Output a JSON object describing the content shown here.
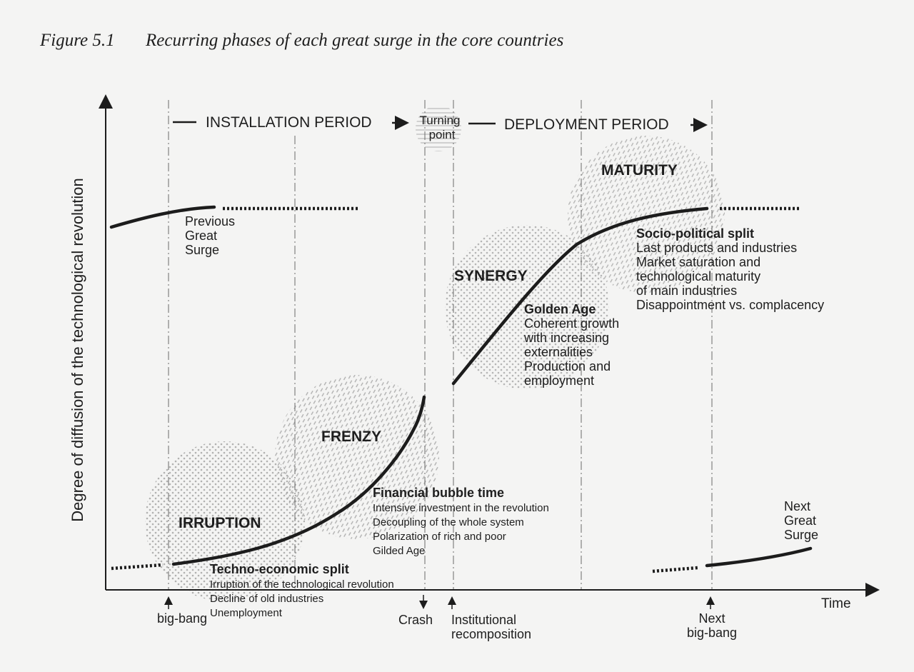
{
  "figure": {
    "label": "Figure 5.1",
    "title": "Recurring phases of each great surge in the core countries"
  },
  "axes": {
    "y_label": "Degree of diffusion of the technological revolution",
    "x_label": "Time"
  },
  "periods": {
    "installation": "INSTALLATION PERIOD",
    "turning_point_line1": "Turning",
    "turning_point_line2": "point",
    "deployment": "DEPLOYMENT PERIOD"
  },
  "phases": {
    "irruption": "IRRUPTION",
    "frenzy": "FRENZY",
    "synergy": "SYNERGY",
    "maturity": "MATURITY"
  },
  "previous_surge": [
    "Previous",
    "Great",
    "Surge"
  ],
  "next_surge": [
    "Next",
    "Great",
    "Surge"
  ],
  "techno_economic": {
    "heading": "Techno-economic split",
    "lines": [
      "Irruption of the technological revolution",
      "Decline of old industries",
      "Unemployment"
    ]
  },
  "financial_bubble": {
    "heading": "Financial bubble time",
    "lines": [
      "Intensive investment in the revolution",
      "Decoupling of the whole system",
      "Polarization of rich and poor",
      "Gilded Age"
    ]
  },
  "golden_age": {
    "heading": "Golden Age",
    "lines": [
      "Coherent growth",
      "with increasing",
      "externalities",
      "Production and",
      "employment"
    ]
  },
  "socio_political": {
    "heading": "Socio-political split",
    "lines": [
      "Last products and industries",
      "Market saturation and",
      "technological maturity",
      "of main industries",
      "Disappointment vs. complacency"
    ]
  },
  "markers": {
    "big_bang": "big-bang",
    "crash": "Crash",
    "institutional_1": "Institutional",
    "institutional_2": "recomposition",
    "next_big_bang_1": "Next",
    "next_big_bang_2": "big-bang"
  }
}
